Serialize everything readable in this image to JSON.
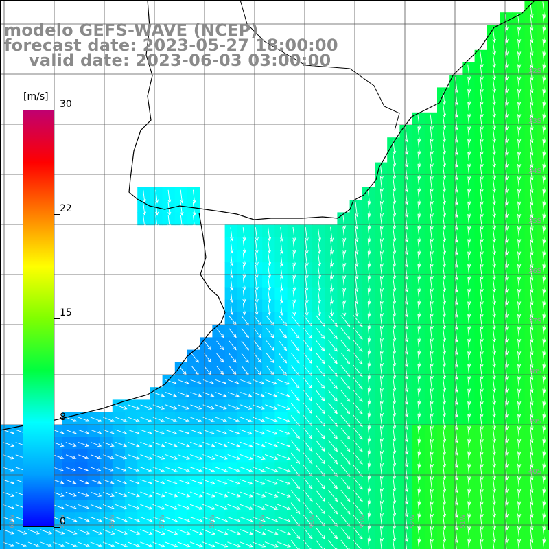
{
  "title": {
    "line1": "modelo GEFS-WAVE (NCEP)",
    "line2": "forecast date: 2023-05-27 18:00:00",
    "line3": "valid date: 2023-06-03 03:00:00"
  },
  "colorbar": {
    "unit": "[m/s]",
    "ticks": [
      "30",
      "22",
      "15",
      "8",
      "0"
    ],
    "tick_values": [
      30,
      22.5,
      15,
      7.5,
      0
    ],
    "range": [
      0,
      30
    ],
    "colors": [
      "#0000ff",
      "#00a0ff",
      "#00ffff",
      "#00ff40",
      "#80ff00",
      "#ffff00",
      "#ff8000",
      "#ff0000",
      "#c00070"
    ]
  },
  "grid": {
    "lat_labels": [
      "32S",
      "33S",
      "34S",
      "35S",
      "36S",
      "37S",
      "38S",
      "39S",
      "40S"
    ],
    "lon_labels": [
      "60W",
      "59W",
      "58W",
      "57W",
      "56W",
      "55W",
      "54W",
      "53W",
      "52W",
      "51W"
    ]
  },
  "land_color": "#ffffff",
  "coast_color": "#000000",
  "arrow_color": "#ffffff",
  "field_description_colors": {
    "slow": "#1060f0",
    "medium": "#20c8ff",
    "fast": "#20f0a0"
  }
}
